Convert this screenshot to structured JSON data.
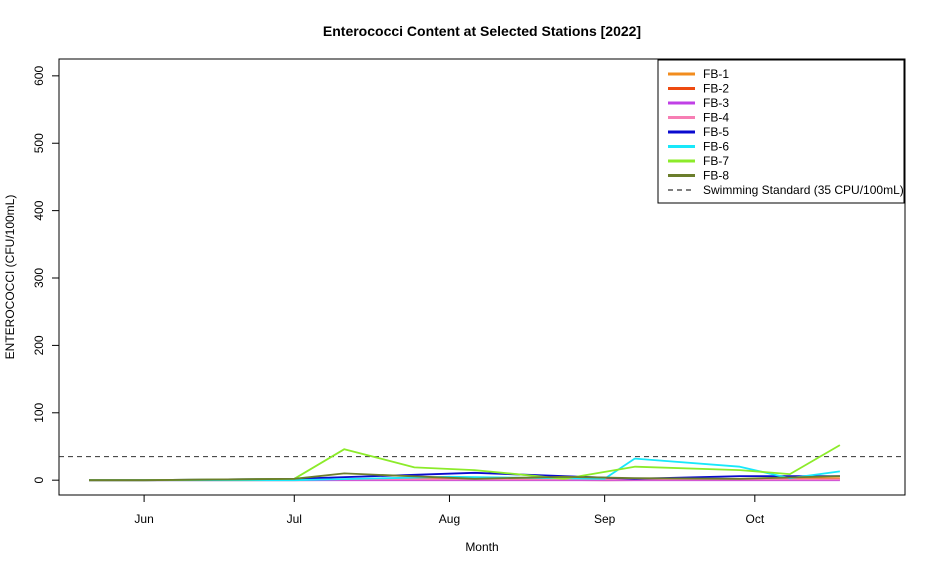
{
  "chart_data": {
    "type": "line",
    "title": "Enterococci Content at Selected Stations [2022]",
    "xlabel": "Month",
    "ylabel": "ENTEROCOCCI (CFU/100mL)",
    "x_domain": [
      "2022-05-15",
      "2022-10-31"
    ],
    "x_ticks": [
      {
        "label": "Jun",
        "date": "2022-06-01"
      },
      {
        "label": "Jul",
        "date": "2022-07-01"
      },
      {
        "label": "Aug",
        "date": "2022-08-01"
      },
      {
        "label": "Sep",
        "date": "2022-09-01"
      },
      {
        "label": "Oct",
        "date": "2022-10-01"
      }
    ],
    "ylim": [
      -22,
      625
    ],
    "y_ticks": [
      0,
      100,
      200,
      300,
      400,
      500,
      600
    ],
    "grid": false,
    "legend_position": "top-right",
    "reference_line": {
      "label": "Swimming Standard (35 CPU/100mL)",
      "value": 35,
      "style": "dashed",
      "color": "#333333"
    },
    "series": [
      {
        "name": "FB-1",
        "color": "#F28C1E",
        "points": [
          [
            "2022-05-21",
            0
          ],
          [
            "2022-06-01",
            0
          ],
          [
            "2022-07-01",
            1
          ],
          [
            "2022-08-01",
            2
          ],
          [
            "2022-09-01",
            1
          ],
          [
            "2022-10-01",
            2
          ],
          [
            "2022-10-18",
            3
          ]
        ]
      },
      {
        "name": "FB-2",
        "color": "#EE4A10",
        "points": [
          [
            "2022-05-21",
            0
          ],
          [
            "2022-06-01",
            0
          ],
          [
            "2022-07-01",
            0
          ],
          [
            "2022-08-01",
            1
          ],
          [
            "2022-09-01",
            0
          ],
          [
            "2022-10-01",
            1
          ],
          [
            "2022-10-18",
            1
          ]
        ]
      },
      {
        "name": "FB-3",
        "color": "#C040E6",
        "points": [
          [
            "2022-05-21",
            0
          ],
          [
            "2022-06-01",
            0
          ],
          [
            "2022-07-01",
            0
          ],
          [
            "2022-08-01",
            0
          ],
          [
            "2022-09-01",
            0
          ],
          [
            "2022-10-01",
            0
          ],
          [
            "2022-10-18",
            0
          ]
        ]
      },
      {
        "name": "FB-4",
        "color": "#F77EB4",
        "points": [
          [
            "2022-05-21",
            0
          ],
          [
            "2022-06-01",
            0
          ],
          [
            "2022-07-01",
            1
          ],
          [
            "2022-08-01",
            1
          ],
          [
            "2022-09-01",
            1
          ],
          [
            "2022-10-01",
            1
          ],
          [
            "2022-10-18",
            1
          ]
        ]
      },
      {
        "name": "FB-5",
        "color": "#0A0ACF",
        "points": [
          [
            "2022-05-21",
            0
          ],
          [
            "2022-06-01",
            0
          ],
          [
            "2022-07-01",
            2
          ],
          [
            "2022-08-06",
            11
          ],
          [
            "2022-09-07",
            2
          ],
          [
            "2022-09-28",
            6
          ],
          [
            "2022-10-18",
            6
          ]
        ]
      },
      {
        "name": "FB-6",
        "color": "#18E8FA",
        "points": [
          [
            "2022-05-21",
            0
          ],
          [
            "2022-06-01",
            0
          ],
          [
            "2022-07-01",
            0
          ],
          [
            "2022-08-01",
            5
          ],
          [
            "2022-09-01",
            2
          ],
          [
            "2022-09-07",
            32
          ],
          [
            "2022-09-28",
            20
          ],
          [
            "2022-10-08",
            3
          ],
          [
            "2022-10-18",
            13
          ]
        ]
      },
      {
        "name": "FB-7",
        "color": "#8CEB2A",
        "points": [
          [
            "2022-05-21",
            0
          ],
          [
            "2022-06-01",
            0
          ],
          [
            "2022-07-01",
            2
          ],
          [
            "2022-07-11",
            46
          ],
          [
            "2022-07-25",
            19
          ],
          [
            "2022-08-06",
            15
          ],
          [
            "2022-08-24",
            2
          ],
          [
            "2022-09-07",
            20
          ],
          [
            "2022-09-28",
            15
          ],
          [
            "2022-10-08",
            9
          ],
          [
            "2022-10-18",
            52
          ]
        ]
      },
      {
        "name": "FB-8",
        "color": "#6B7E2C",
        "points": [
          [
            "2022-05-21",
            0
          ],
          [
            "2022-06-01",
            0
          ],
          [
            "2022-07-01",
            2
          ],
          [
            "2022-07-11",
            10
          ],
          [
            "2022-08-06",
            2
          ],
          [
            "2022-08-24",
            5
          ],
          [
            "2022-09-07",
            3
          ],
          [
            "2022-09-28",
            2
          ],
          [
            "2022-10-18",
            6
          ]
        ]
      }
    ]
  }
}
